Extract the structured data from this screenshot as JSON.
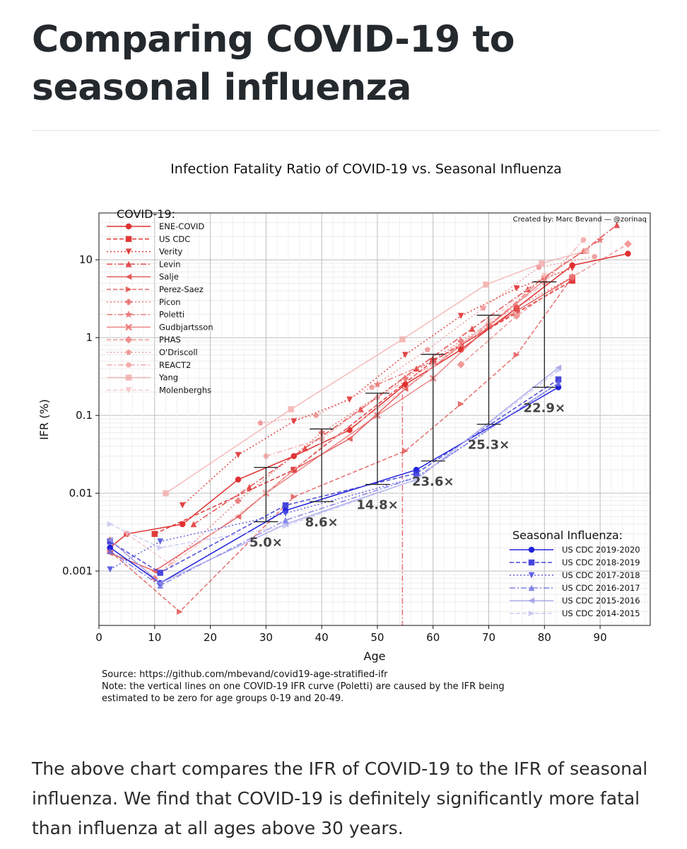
{
  "page": {
    "title": "Comparing COVID-19 to seasonal influenza",
    "paragraph": "The above chart compares the IFR of COVID-19 to the IFR of seasonal influenza. We find that COVID-19 is definitely significantly more fatal than influenza at all ages above 30 years."
  },
  "chart_data": {
    "type": "line",
    "title": "Infection Fatality Ratio of COVID-19 vs. Seasonal Influenza",
    "xlabel": "Age",
    "ylabel": "IFR (%)",
    "xlim": [
      0,
      99
    ],
    "ylim": [
      0.0002,
      40
    ],
    "yscale": "log",
    "xticks": [
      0,
      10,
      20,
      30,
      40,
      50,
      60,
      70,
      80,
      90
    ],
    "yticks": [
      {
        "value": 0.001,
        "label": "0.001"
      },
      {
        "value": 0.01,
        "label": "0.01"
      },
      {
        "value": 0.1,
        "label": "0.1"
      },
      {
        "value": 1,
        "label": "1"
      },
      {
        "value": 10,
        "label": "10"
      }
    ],
    "credit": "Created by: Marc Bevand — @zorinaq",
    "source": "Source: https://github.com/mbevand/covid19-age-stratified-ifr",
    "note_lines": [
      "Note: the vertical lines on one COVID-19 IFR curve (Poletti) are caused by the IFR being",
      "estimated to be zero for age groups 0-19 and 20-49."
    ],
    "legend_covid_title": "COVID-19:",
    "legend_flu_title": "Seasonal Influenza:",
    "covid_series": [
      {
        "name": "ENE-COVID",
        "color": "#e03030",
        "opacity": 1.0,
        "dash": "",
        "marker": "o",
        "x": [
          2,
          5,
          15,
          25,
          35,
          45,
          55,
          65,
          75,
          85,
          95
        ],
        "y": [
          0.002,
          0.003,
          0.004,
          0.015,
          0.03,
          0.065,
          0.25,
          0.7,
          2.4,
          8.5,
          12
        ]
      },
      {
        "name": "US CDC",
        "color": "#e03030",
        "opacity": 0.95,
        "dash": "6,3",
        "marker": "s",
        "x": [
          10,
          35,
          60,
          85
        ],
        "y": [
          0.003,
          0.02,
          0.5,
          5.4
        ]
      },
      {
        "name": "Verity",
        "color": "#e03030",
        "opacity": 0.9,
        "dash": "2,3",
        "marker": "v",
        "x": [
          15,
          25,
          35,
          45,
          55,
          65,
          75,
          85
        ],
        "y": [
          0.007,
          0.031,
          0.084,
          0.16,
          0.6,
          1.9,
          4.3,
          7.8
        ]
      },
      {
        "name": "Levin",
        "color": "#e03030",
        "opacity": 0.85,
        "dash": "8,3,2,3",
        "marker": "^",
        "x": [
          17,
          27,
          37,
          47,
          57,
          67,
          77,
          87,
          93
        ],
        "y": [
          0.004,
          0.012,
          0.038,
          0.12,
          0.4,
          1.3,
          4.2,
          13,
          28
        ]
      },
      {
        "name": "Salje",
        "color": "#e34a4a",
        "opacity": 0.85,
        "dash": "",
        "marker": "<",
        "x": [
          2,
          10,
          25,
          35,
          45,
          55,
          65,
          75,
          85
        ],
        "y": [
          0.0017,
          0.001,
          0.005,
          0.02,
          0.05,
          0.22,
          0.8,
          2.2,
          6
        ]
      },
      {
        "name": "Perez-Saez",
        "color": "#e34a4a",
        "opacity": 0.8,
        "dash": "6,3",
        "marker": ">",
        "x": [
          2,
          14.5,
          35,
          55,
          65,
          75,
          85
        ],
        "y": [
          0.0018,
          0.0003,
          0.009,
          0.035,
          0.14,
          0.6,
          6
        ]
      },
      {
        "name": "Picon",
        "color": "#e86060",
        "opacity": 0.8,
        "dash": "2,3",
        "marker": "P",
        "x": [
          2,
          10,
          25,
          40,
          55,
          65,
          75,
          85
        ],
        "y": [
          0.0025,
          0.0008,
          0.008,
          0.06,
          0.3,
          0.9,
          2.5,
          6
        ]
      },
      {
        "name": "Poletti",
        "color": "#e86060",
        "opacity": 0.8,
        "dash": "8,3,2,3",
        "marker": "*",
        "x": [
          50,
          60,
          70,
          80,
          90
        ],
        "y": [
          0.25,
          0.5,
          1.4,
          6,
          18
        ]
      },
      {
        "name": "Gudbjartsson",
        "color": "#e86060",
        "opacity": 0.75,
        "dash": "",
        "marker": "X",
        "x": [
          30,
          50,
          60,
          70,
          80
        ],
        "y": [
          0.01,
          0.1,
          0.3,
          1.4,
          5.5
        ]
      },
      {
        "name": "PHAS",
        "color": "#ec7878",
        "opacity": 0.75,
        "dash": "6,3",
        "marker": "D",
        "x": [
          65,
          75,
          85,
          95
        ],
        "y": [
          0.45,
          1.9,
          6,
          16
        ]
      },
      {
        "name": "O'Driscoll",
        "color": "#ec7878",
        "opacity": 0.7,
        "dash": "2,3",
        "marker": "p",
        "x": [
          29,
          39,
          49,
          59,
          69,
          79,
          89
        ],
        "y": [
          0.08,
          0.1,
          0.23,
          0.7,
          2.4,
          8,
          11
        ]
      },
      {
        "name": "REACT2",
        "color": "#ef8f8f",
        "opacity": 0.7,
        "dash": "8,3,2,3",
        "marker": "h",
        "x": [
          30,
          40,
          50,
          60,
          70,
          80,
          87
        ],
        "y": [
          0.03,
          0.05,
          0.17,
          0.45,
          1.5,
          5,
          18
        ]
      },
      {
        "name": "Yang",
        "color": "#f3aaaa",
        "opacity": 0.8,
        "dash": "",
        "marker": "s",
        "x": [
          12,
          34.5,
          54.5,
          69.5,
          79.5,
          87.5
        ],
        "y": [
          0.01,
          0.12,
          0.95,
          4.8,
          9,
          13
        ]
      },
      {
        "name": "Molenberghs",
        "color": "#f5c0c0",
        "opacity": 0.8,
        "dash": "6,3",
        "marker": "v",
        "x": [
          5,
          13,
          30,
          40,
          50,
          60,
          70,
          80
        ],
        "y": [
          0.003,
          0.0012,
          0.01,
          0.04,
          0.12,
          0.42,
          1.6,
          6.2
        ]
      }
    ],
    "flu_series": [
      {
        "name": "US CDC 2019-2020",
        "color": "#2020dd",
        "opacity": 1.0,
        "dash": "",
        "marker": "o",
        "x": [
          2,
          11,
          33.5,
          57,
          82.5
        ],
        "y": [
          0.002,
          0.0007,
          0.006,
          0.02,
          0.23
        ]
      },
      {
        "name": "US CDC 2018-2019",
        "color": "#3636d8",
        "opacity": 0.9,
        "dash": "6,3",
        "marker": "s",
        "x": [
          2,
          11,
          33.5,
          57,
          82.5
        ],
        "y": [
          0.0024,
          0.00095,
          0.007,
          0.018,
          0.29
        ]
      },
      {
        "name": "US CDC 2017-2018",
        "color": "#4a4ae0",
        "opacity": 0.85,
        "dash": "2,3",
        "marker": "v",
        "x": [
          2,
          11,
          33.5,
          57,
          82.5
        ],
        "y": [
          0.00105,
          0.0024,
          0.0055,
          0.016,
          0.26
        ]
      },
      {
        "name": "US CDC 2016-2017",
        "color": "#6a6ae6",
        "opacity": 0.8,
        "dash": "8,3,2,3",
        "marker": "^",
        "x": [
          2,
          11,
          33.5,
          57,
          82.5
        ],
        "y": [
          0.0018,
          0.00065,
          0.0045,
          0.016,
          0.26
        ]
      },
      {
        "name": "US CDC 2015-2016",
        "color": "#9a9aea",
        "opacity": 0.8,
        "dash": "",
        "marker": "<",
        "x": [
          2,
          11,
          33.5,
          57,
          82.5
        ],
        "y": [
          0.0025,
          0.0007,
          0.004,
          0.015,
          0.41
        ]
      },
      {
        "name": "US CDC 2014-2015",
        "color": "#c8c8f3",
        "opacity": 0.85,
        "dash": "6,3",
        "marker": ">",
        "x": [
          2,
          11,
          33.5,
          57,
          82.5
        ],
        "y": [
          0.004,
          0.002,
          0.0038,
          0.015,
          0.38
        ]
      }
    ],
    "gap_bars": [
      {
        "x": 30,
        "low": 0.0043,
        "high": 0.0215,
        "label": "5.0×"
      },
      {
        "x": 40,
        "low": 0.0078,
        "high": 0.067,
        "label": "8.6×"
      },
      {
        "x": 50,
        "low": 0.013,
        "high": 0.193,
        "label": "14.8×"
      },
      {
        "x": 60,
        "low": 0.026,
        "high": 0.61,
        "label": "23.6×"
      },
      {
        "x": 70,
        "low": 0.077,
        "high": 1.94,
        "label": "25.3×"
      },
      {
        "x": 80,
        "low": 0.23,
        "high": 5.2,
        "label": "22.9×"
      }
    ],
    "poletti_vline_x": 54.5
  }
}
